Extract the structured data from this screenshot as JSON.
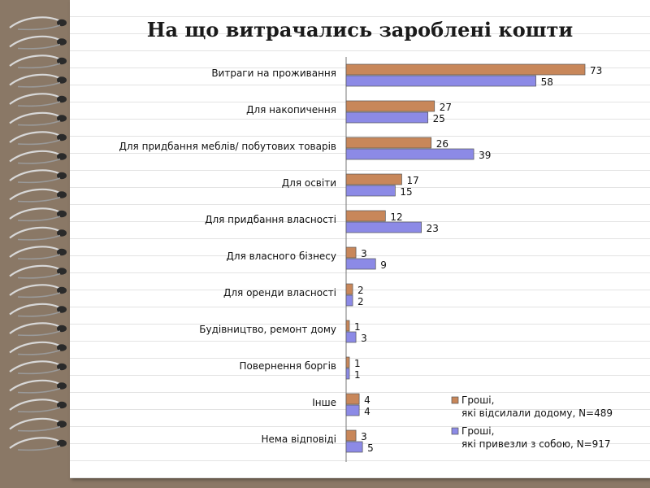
{
  "page": {
    "title": "На що витрачались зароблені кошти"
  },
  "chart_data": {
    "type": "bar",
    "orientation": "horizontal",
    "title": "На що витрачались зароблені кошти",
    "categories": [
      "Витраги на проживання",
      "Для накопичення",
      "Для придбання меблів/ побутових товарів",
      "Для освіти",
      "Для придбання власності",
      "Для власного бізнесу",
      "Для оренди власності",
      "Будівництво, ремонт дому",
      "Повернення боргів",
      "Інше",
      "Нема відповіді"
    ],
    "series": [
      {
        "name": "Гроші, які відсилали додому, N=489",
        "color": "#c8875a",
        "values": [
          73,
          27,
          26,
          17,
          12,
          3,
          2,
          1,
          1,
          4,
          3
        ]
      },
      {
        "name": "Гроші, які привезли з собою, N=917",
        "color": "#8c8ae6",
        "values": [
          58,
          25,
          39,
          15,
          23,
          9,
          2,
          3,
          1,
          4,
          5
        ]
      }
    ],
    "xlim": [
      0,
      80
    ],
    "legend_position": "bottom-right",
    "grid": false
  }
}
